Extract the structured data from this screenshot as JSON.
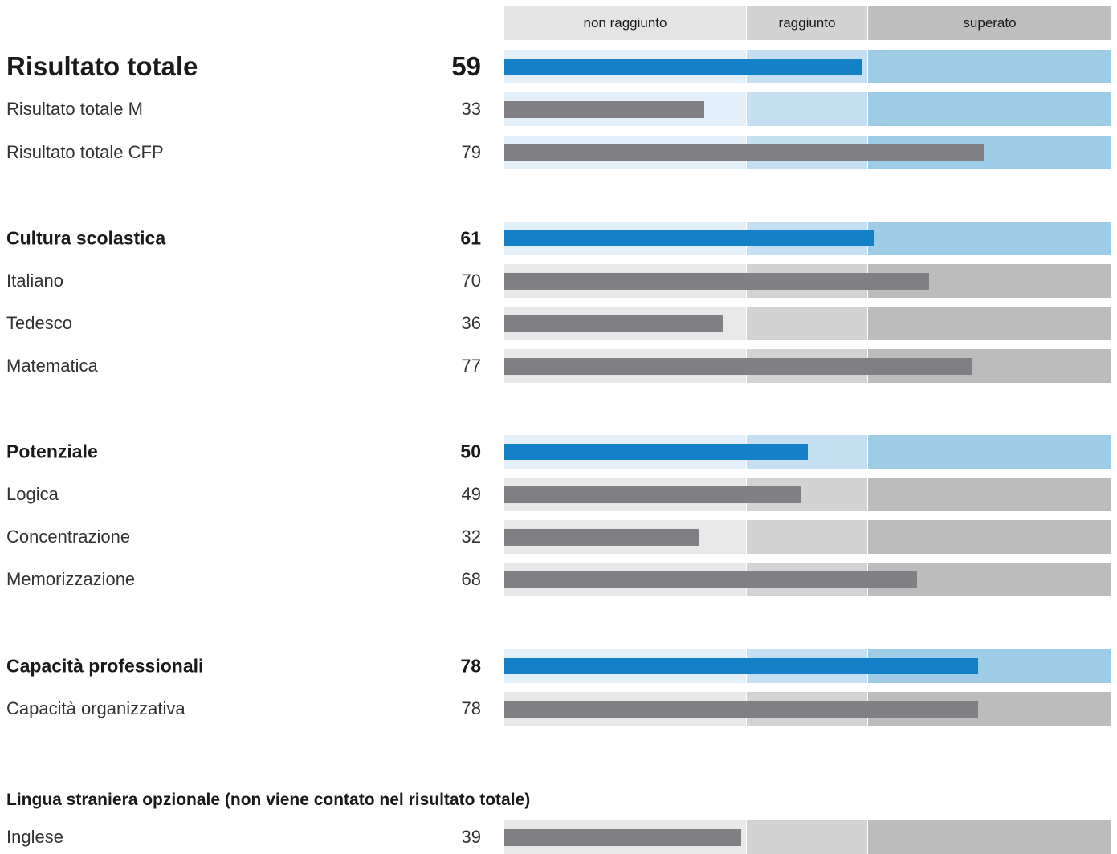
{
  "scale": {
    "min": 0,
    "max": 100,
    "thresholds": [
      40,
      60
    ]
  },
  "zones": [
    "non raggiunto",
    "raggiunto",
    "superato"
  ],
  "colors": {
    "primary_bar": "#1380c7",
    "secondary_bar": "#808084",
    "header_zone": [
      "#e4e4e4",
      "#d3d3d3",
      "#bebebe"
    ],
    "blue_zone": [
      "#e3f0fa",
      "#c3dff1",
      "#9ecce6"
    ],
    "gray_zone": [
      "#e8e8e8",
      "#d3d3d3",
      "#bcbcbc"
    ]
  },
  "rows": [
    {
      "label": "Risultato totale",
      "value": 59,
      "style": "primary-large",
      "track": "blue"
    },
    {
      "label": "Risultato totale M",
      "value": 33,
      "style": "secondary",
      "track": "blue"
    },
    {
      "label": "Risultato totale CFP",
      "value": 79,
      "style": "secondary",
      "track": "blue"
    },
    {
      "label": "Cultura scolastica",
      "value": 61,
      "style": "primary",
      "track": "blue"
    },
    {
      "label": "Italiano",
      "value": 70,
      "style": "secondary",
      "track": "gray"
    },
    {
      "label": "Tedesco",
      "value": 36,
      "style": "secondary",
      "track": "gray"
    },
    {
      "label": "Matematica",
      "value": 77,
      "style": "secondary",
      "track": "gray"
    },
    {
      "label": "Potenziale",
      "value": 50,
      "style": "primary",
      "track": "blue"
    },
    {
      "label": "Logica",
      "value": 49,
      "style": "secondary",
      "track": "gray"
    },
    {
      "label": "Concentrazione",
      "value": 32,
      "style": "secondary",
      "track": "gray"
    },
    {
      "label": "Memorizzazione",
      "value": 68,
      "style": "secondary",
      "track": "gray"
    },
    {
      "label": "Capacità professionali",
      "value": 78,
      "style": "primary",
      "track": "blue"
    },
    {
      "label": "Capacità organizzativa",
      "value": 78,
      "style": "secondary",
      "track": "gray"
    },
    {
      "label": "Inglese",
      "value": 39,
      "style": "secondary",
      "track": "gray"
    }
  ],
  "note": "Lingua straniera opzionale (non viene contato nel risultato totale)",
  "chart_data": {
    "type": "bar",
    "orientation": "horizontal",
    "categories": [
      "Risultato totale",
      "Risultato totale M",
      "Risultato totale CFP",
      "Cultura scolastica",
      "Italiano",
      "Tedesco",
      "Matematica",
      "Potenziale",
      "Logica",
      "Concentrazione",
      "Memorizzazione",
      "Capacità professionali",
      "Capacità organizzativa",
      "Inglese"
    ],
    "values": [
      59,
      33,
      79,
      61,
      70,
      36,
      77,
      50,
      49,
      32,
      68,
      78,
      78,
      39
    ],
    "xlim": [
      0,
      100
    ],
    "bands": [
      {
        "label": "non raggiunto",
        "from": 0,
        "to": 40
      },
      {
        "label": "raggiunto",
        "from": 40,
        "to": 60
      },
      {
        "label": "superato",
        "from": 60,
        "to": 100
      }
    ]
  }
}
